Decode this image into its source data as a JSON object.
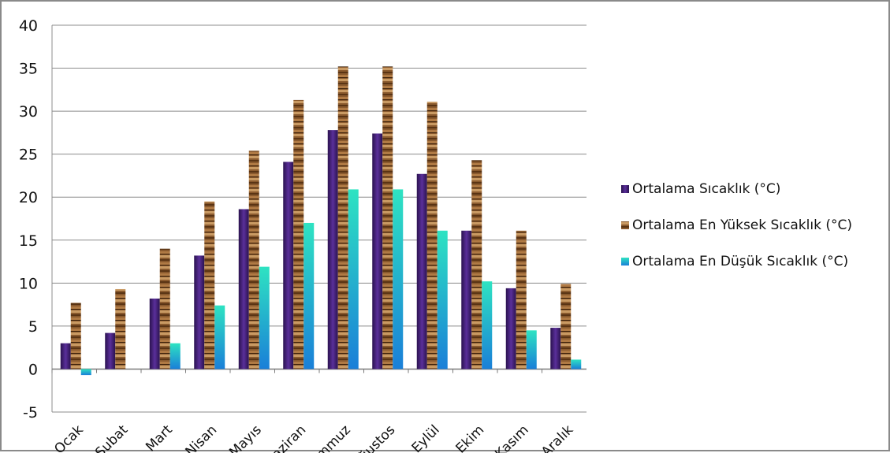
{
  "chart_data": {
    "type": "bar",
    "categories": [
      "Ocak",
      "Şubat",
      "Mart",
      "Nisan",
      "Mayıs",
      "Haziran",
      "Temmuz",
      "Ağustos",
      "Eylül",
      "Ekim",
      "Kasım",
      "Aralık"
    ],
    "series": [
      {
        "name": "Ortalama Sıcaklık (°C)",
        "color": "#3b1f6e",
        "values": [
          3.0,
          4.2,
          8.2,
          13.2,
          18.6,
          24.1,
          27.8,
          27.4,
          22.7,
          16.1,
          9.4,
          4.8
        ]
      },
      {
        "name": "Ortalama En Yüksek Sıcaklık (°C)",
        "color": "#8a5a2e",
        "values": [
          7.7,
          9.3,
          14.0,
          19.5,
          25.4,
          31.3,
          35.2,
          35.2,
          31.1,
          24.3,
          16.1,
          9.9
        ]
      },
      {
        "name": "Ortalama En Düşük Sıcaklık (°C)",
        "color": "#22c4d8",
        "values": [
          -0.7,
          0.0,
          3.0,
          7.4,
          11.9,
          17.0,
          20.9,
          20.9,
          16.1,
          10.2,
          4.5,
          1.1
        ]
      }
    ],
    "ylim": [
      -5,
      40
    ],
    "yticks": [
      "-5",
      "0",
      "5",
      "10",
      "15",
      "20",
      "25",
      "30",
      "35",
      "40"
    ],
    "grid": true,
    "legend_position": "right"
  }
}
